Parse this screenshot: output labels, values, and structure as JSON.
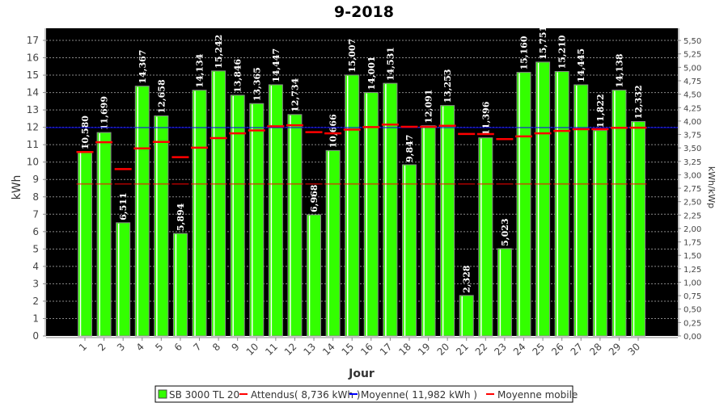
{
  "chart_data": {
    "type": "bar",
    "title": "9-2018",
    "xlabel": "Jour",
    "ylabel": "kWh",
    "ylabel_right": "kWh/kWp",
    "ylim": [
      0,
      17.5
    ],
    "yticks": [
      0,
      1,
      2,
      3,
      4,
      5,
      6,
      7,
      8,
      9,
      10,
      11,
      12,
      13,
      14,
      15,
      16,
      17
    ],
    "ylim_right": [
      0,
      5.66
    ],
    "yticks_right": [
      "0,00",
      "0,25",
      "0,50",
      "0,75",
      "1,00",
      "1,25",
      "1,50",
      "1,75",
      "2,00",
      "2,25",
      "2,50",
      "2,75",
      "3,00",
      "3,25",
      "3,50",
      "3,75",
      "4,00",
      "4,25",
      "4,50",
      "4,75",
      "5,00",
      "5,25",
      "5,50"
    ],
    "kwp_factor": 3.09,
    "grid": true,
    "categories": [
      "1",
      "2",
      "3",
      "4",
      "5",
      "6",
      "7",
      "8",
      "9",
      "10",
      "11",
      "12",
      "13",
      "14",
      "15",
      "16",
      "17",
      "18",
      "19",
      "20",
      "21",
      "22",
      "23",
      "24",
      "25",
      "26",
      "27",
      "28",
      "29",
      "30"
    ],
    "series": [
      {
        "name": "SB 3000 TL 20",
        "type": "bar",
        "color": "#33ff00",
        "values": [
          10.58,
          11.699,
          6.511,
          14.367,
          12.658,
          5.894,
          14.134,
          15.242,
          13.846,
          13.365,
          14.447,
          12.734,
          6.968,
          10.666,
          15.007,
          14.001,
          14.531,
          9.847,
          12.091,
          13.253,
          2.328,
          11.396,
          5.023,
          15.16,
          15.751,
          15.21,
          14.445,
          11.822,
          14.138,
          12.332
        ],
        "labels": [
          "10,580",
          "11,699",
          "6,511",
          "14,367",
          "12,658",
          "5,894",
          "14,134",
          "15,242",
          "13,846",
          "13,365",
          "14,447",
          "12,734",
          "6,968",
          "10,666",
          "15,007",
          "14,001",
          "14,531",
          "9,847",
          "12,091",
          "13,253",
          "2,328",
          "11,396",
          "5,023",
          "15,160",
          "15,751",
          "15,210",
          "14,445",
          "11,822",
          "14,138",
          "12,332"
        ]
      },
      {
        "name": "Attendus( 8,736 kWh )",
        "type": "hline",
        "color": "#ff0000",
        "value": 8.736
      },
      {
        "name": "Moyenne( 11,982 kWh )",
        "type": "hline",
        "color": "#0000ff",
        "value": 11.982
      },
      {
        "name": "Moyenne mobile",
        "type": "marker",
        "color": "#ff0000",
        "values": [
          10.58,
          11.14,
          9.6,
          10.79,
          11.16,
          10.28,
          10.83,
          11.38,
          11.65,
          11.82,
          12.06,
          12.12,
          11.72,
          11.65,
          11.87,
          12.01,
          12.16,
          12.03,
          12.03,
          12.09,
          11.62,
          11.61,
          11.32,
          11.48,
          11.65,
          11.79,
          11.89,
          11.89,
          11.97,
          11.98
        ]
      }
    ],
    "legend": "bottom"
  }
}
